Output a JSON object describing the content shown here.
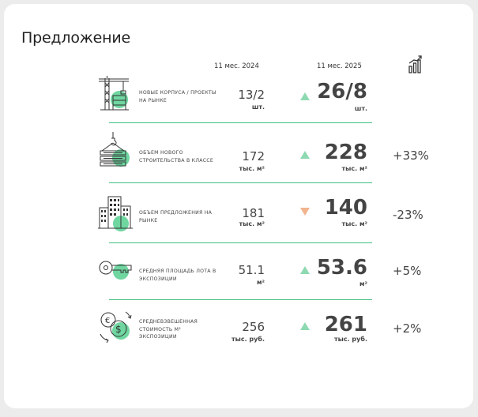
{
  "panel": {
    "title": "Предложение",
    "col_2024": "11 мес. 2024",
    "col_2025": "11 мес. 2025",
    "chart_icon": "bar-chart-icon"
  },
  "rows": [
    {
      "icon": "construction-crane-icon",
      "label": "НОВЫЕ КОРПУСА / ПРОЕКТЫ НА РЫНКЕ",
      "v24": "13/2",
      "u24": "шт.",
      "trend": "up",
      "v25": "26/8",
      "u25": "шт.",
      "delta": ""
    },
    {
      "icon": "crane-hook-panels-icon",
      "label": "ОБЪЕМ НОВОГО СТРОИТЕЛЬСТВА В КЛАССЕ",
      "v24": "172",
      "u24": "тыс. м²",
      "trend": "up",
      "v25": "228",
      "u25": "тыс. м²",
      "delta": "+33%"
    },
    {
      "icon": "city-buildings-icon",
      "label": "ОБЪЕМ ПРЕДЛОЖЕНИЯ НА РЫНКЕ",
      "v24": "181",
      "u24": "тыс. м²",
      "trend": "down",
      "v25": "140",
      "u25": "тыс. м²",
      "delta": "-23%"
    },
    {
      "icon": "key-icon",
      "label": "СРЕДНЯЯ ПЛОЩАДЬ ЛОТА В ЭКСПОЗИЦИИ",
      "v24": "51.1",
      "u24": "м²",
      "trend": "up",
      "v25": "53.6",
      "u25": "м²",
      "delta": "+5%"
    },
    {
      "icon": "currency-coins-icon",
      "label": "СРЕДНЕВЗВЕШЕННАЯ СТОИМОСТЬ М² ЭКСПОЗИЦИИ",
      "v24": "256",
      "u24": "тыс. руб.",
      "trend": "up",
      "v25": "261",
      "u25": "тыс. руб.",
      "delta": "+2%"
    }
  ],
  "colors": {
    "accent_green": "#3fbf7f",
    "blob_green": "#6fd6a0",
    "arrow_up": "#8ed9b2",
    "arrow_down": "#f0b48e"
  }
}
